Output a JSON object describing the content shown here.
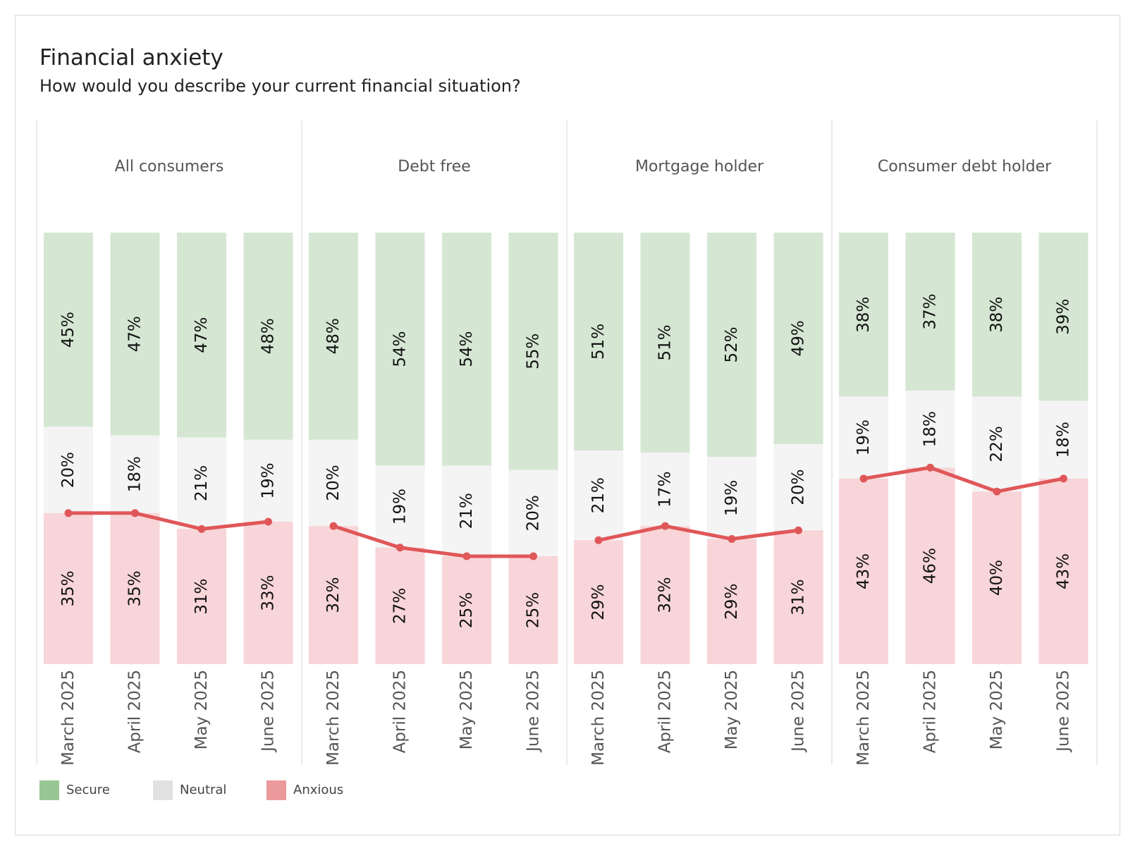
{
  "title": "Financial anxiety",
  "subtitle": "How would you describe your current financial situation?",
  "colors": {
    "secure": "#d5e7d3",
    "neutral": "#f4f4f4",
    "anxious": "#f8d5d8",
    "line": "#e05759",
    "legend_secure": "#98c793",
    "legend_neutral": "#e1e1e1",
    "legend_anxious": "#eb999b",
    "panel_border": "#d6d6d6"
  },
  "legend": [
    {
      "label": "Secure",
      "color_key": "legend_secure"
    },
    {
      "label": "Neutral",
      "color_key": "legend_neutral"
    },
    {
      "label": "Anxious",
      "color_key": "legend_anxious"
    }
  ],
  "chart_data": {
    "type": "bar",
    "stacked": true,
    "normalized": true,
    "categories": [
      "March 2025",
      "April 2025",
      "May 2025",
      "June 2025"
    ],
    "panels": [
      {
        "name": "All consumers",
        "secure": [
          45,
          47,
          47,
          48
        ],
        "neutral": [
          20,
          18,
          21,
          19
        ],
        "anxious": [
          35,
          35,
          31,
          33
        ]
      },
      {
        "name": "Debt free",
        "secure": [
          48,
          54,
          54,
          55
        ],
        "neutral": [
          20,
          19,
          21,
          20
        ],
        "anxious": [
          32,
          27,
          25,
          25
        ]
      },
      {
        "name": "Mortgage holder",
        "secure": [
          51,
          51,
          52,
          49
        ],
        "neutral": [
          21,
          17,
          19,
          20
        ],
        "anxious": [
          29,
          32,
          29,
          31
        ]
      },
      {
        "name": "Consumer debt holder",
        "secure": [
          38,
          37,
          38,
          39
        ],
        "neutral": [
          19,
          18,
          22,
          18
        ],
        "anxious": [
          43,
          46,
          40,
          43
        ]
      }
    ],
    "line_series": "anxious",
    "label_suffix": "%",
    "ylim": [
      0,
      100
    ],
    "grid": false,
    "legend_position": "bottom-left"
  }
}
